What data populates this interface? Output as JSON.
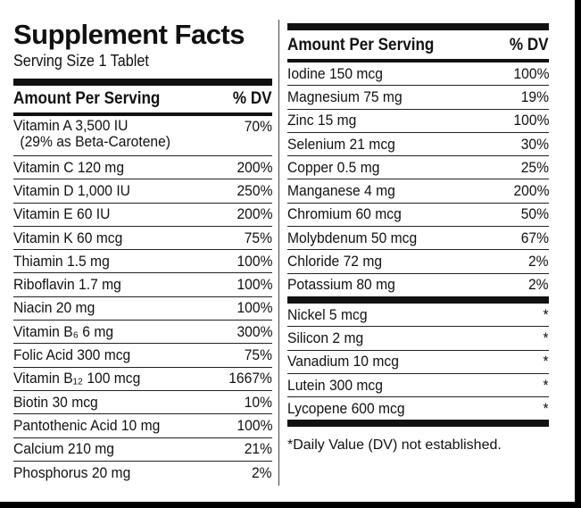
{
  "left": {
    "title": "Supplement Facts",
    "serving": "Serving Size 1 Tablet",
    "header": {
      "amount": "Amount Per Serving",
      "dv": "% DV"
    },
    "rows": [
      {
        "name": "Vitamin A 3,500 IU",
        "note": "(29% as Beta-Carotene)",
        "dv": "70%"
      },
      {
        "name": "Vitamin C 120 mg",
        "dv": "200%"
      },
      {
        "name": "Vitamin D 1,000 IU",
        "dv": "250%"
      },
      {
        "name": "Vitamin E 60 IU",
        "dv": "200%"
      },
      {
        "name": "Vitamin K 60 mcg",
        "dv": "75%"
      },
      {
        "name": "Thiamin 1.5 mg",
        "dv": "100%"
      },
      {
        "name": "Riboflavin 1.7 mg",
        "dv": "100%"
      },
      {
        "name": "Niacin 20 mg",
        "dv": "100%"
      },
      {
        "name": "Vitamin B₆ 6 mg",
        "dv": "300%"
      },
      {
        "name": "Folic Acid 300 mcg",
        "dv": "75%"
      },
      {
        "name": "Vitamin B₁₂ 100 mcg",
        "dv": "1667%"
      },
      {
        "name": "Biotin 30 mcg",
        "dv": "10%"
      },
      {
        "name": "Pantothenic Acid 10 mg",
        "dv": "100%"
      },
      {
        "name": "Calcium 210 mg",
        "dv": "21%"
      },
      {
        "name": "Phosphorus 20 mg",
        "dv": "2%"
      }
    ]
  },
  "right": {
    "header": {
      "amount": "Amount Per Serving",
      "dv": "% DV"
    },
    "rows": [
      {
        "name": "Iodine 150 mcg",
        "dv": "100%"
      },
      {
        "name": "Magnesium 75 mg",
        "dv": "19%"
      },
      {
        "name": "Zinc 15 mg",
        "dv": "100%"
      },
      {
        "name": "Selenium 21 mcg",
        "dv": "30%"
      },
      {
        "name": "Copper 0.5 mg",
        "dv": "25%"
      },
      {
        "name": "Manganese 4 mg",
        "dv": "200%"
      },
      {
        "name": "Chromium 60 mcg",
        "dv": "50%"
      },
      {
        "name": "Molybdenum 50 mcg",
        "dv": "67%"
      },
      {
        "name": "Chloride 72 mg",
        "dv": "2%"
      },
      {
        "name": "Potassium 80 mg",
        "dv": "2%"
      }
    ],
    "other_rows": [
      {
        "name": "Nickel 5 mcg",
        "dv": "*"
      },
      {
        "name": "Silicon 2 mg",
        "dv": "*"
      },
      {
        "name": "Vanadium 10 mcg",
        "dv": "*"
      },
      {
        "name": "Lutein 300 mcg",
        "dv": "*"
      },
      {
        "name": "Lycopene 600 mcg",
        "dv": "*"
      }
    ],
    "footnote": "*Daily Value (DV) not established."
  }
}
